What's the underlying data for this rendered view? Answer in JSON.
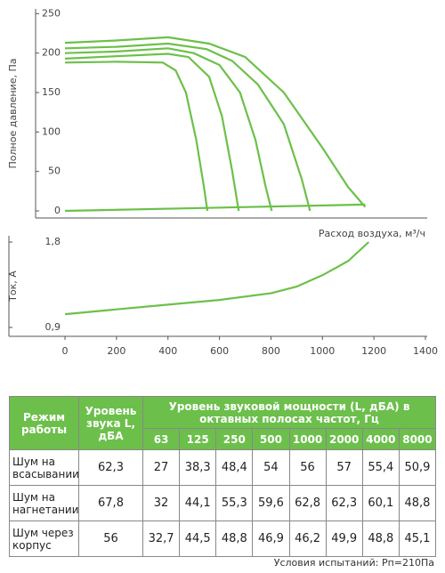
{
  "chart_data": [
    {
      "type": "line",
      "ylabel": "Полное давление, Па",
      "xlabel": "Расход воздуха, м³/ч",
      "xlim": [
        -114,
        1407
      ],
      "ylim": [
        -9,
        256
      ],
      "yticks": [
        0,
        50,
        100,
        150,
        200,
        250
      ],
      "series": [
        {
          "color": "#6cc04a",
          "x": [
            0,
            200,
            400,
            560,
            700,
            850,
            1000,
            1100,
            1166
          ],
          "values": [
            213,
            216,
            220,
            212,
            195,
            150,
            80,
            30,
            5
          ]
        },
        {
          "color": "#6cc04a",
          "x": [
            0,
            200,
            400,
            550,
            650,
            750,
            850,
            920,
            952
          ],
          "values": [
            206,
            208,
            212,
            205,
            190,
            160,
            110,
            40,
            0
          ]
        },
        {
          "color": "#6cc04a",
          "x": [
            0,
            200,
            400,
            500,
            600,
            680,
            740,
            780,
            803
          ],
          "values": [
            200,
            202,
            206,
            200,
            185,
            150,
            90,
            30,
            0
          ]
        },
        {
          "color": "#6cc04a",
          "x": [
            0,
            200,
            400,
            480,
            560,
            610,
            650,
            675
          ],
          "values": [
            193,
            196,
            199,
            195,
            170,
            120,
            50,
            0
          ]
        },
        {
          "color": "#6cc04a",
          "x": [
            0,
            200,
            380,
            430,
            470,
            510,
            540,
            553
          ],
          "values": [
            188,
            189,
            188,
            178,
            150,
            90,
            30,
            0
          ]
        },
        {
          "color": "#6cc04a",
          "x": [
            0,
            1166
          ],
          "values": [
            0,
            8
          ]
        }
      ]
    },
    {
      "type": "line",
      "ylabel": "Ток, А",
      "xlim": [
        -218,
        1407
      ],
      "ylim": [
        0.806,
        1.866
      ],
      "yticks": [
        {
          "value": 0.9,
          "label": "0,9"
        },
        {
          "value": 1.8,
          "label": "1,8"
        }
      ],
      "xticks": [
        0,
        200,
        400,
        600,
        800,
        1000,
        1200,
        1400
      ],
      "series": [
        {
          "color": "#6cc04a",
          "x": [
            0,
            200,
            400,
            600,
            800,
            900,
            1000,
            1100,
            1180
          ],
          "values": [
            1.04,
            1.09,
            1.14,
            1.19,
            1.26,
            1.33,
            1.45,
            1.6,
            1.8
          ]
        }
      ]
    }
  ],
  "table": {
    "header": {
      "mode": "Режим работы",
      "level": "Уровень звука L, дБА",
      "power": "Уровень звуковой мощности (L, дБА) в октавных полосах частот, Гц",
      "freqs": [
        "63",
        "125",
        "250",
        "500",
        "1000",
        "2000",
        "4000",
        "8000"
      ]
    },
    "rows": [
      [
        "Шум на всасывании",
        "62,3",
        "27",
        "38,3",
        "48,4",
        "54",
        "56",
        "57",
        "55,4",
        "50,9"
      ],
      [
        "Шум на нагнетании",
        "67,8",
        "32",
        "44,1",
        "55,3",
        "59,6",
        "62,8",
        "62,3",
        "60,1",
        "48,8"
      ],
      [
        "Шум через корпус",
        "56",
        "32,7",
        "44,5",
        "48,8",
        "46,9",
        "46,2",
        "49,9",
        "48,8",
        "45,1"
      ]
    ]
  },
  "footer": "Условия испытаний: Рп=210Па"
}
